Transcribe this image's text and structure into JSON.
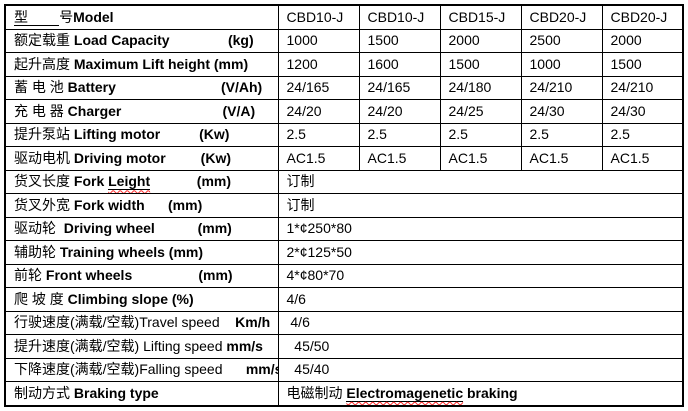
{
  "page": {
    "background": "#ffffff",
    "kind": "forklift-specification-table"
  },
  "colors": {
    "border": "#000000",
    "text": "#000000",
    "highlight_value": "#ff0000",
    "spellcheck_wavy": "#ff2a2a"
  },
  "table": {
    "value_column_count": 5,
    "rows": [
      {
        "name": "model",
        "label": [
          {
            "t": "型        ",
            "u": true
          },
          {
            "t": "号"
          },
          {
            "t": "Model",
            "b": true
          }
        ],
        "values": [
          "CBD10-J",
          "CBD10-J",
          "CBD15-J",
          "CBD20-J",
          "CBD20-J"
        ]
      },
      {
        "name": "load-capacity",
        "label": [
          {
            "t": "额定载重 "
          },
          {
            "t": "Load Capacity",
            "b": true
          },
          {
            "t": "               (kg)",
            "b": true
          }
        ],
        "values": [
          "1000",
          "1500",
          "2000",
          "2500",
          "2000"
        ]
      },
      {
        "name": "lift-height",
        "label": [
          {
            "t": "起升高度 "
          },
          {
            "t": "Maximum Lift height (mm)",
            "b": true
          }
        ],
        "values": [
          "1200",
          "1600",
          "1500",
          "1000",
          "1500"
        ]
      },
      {
        "name": "battery",
        "label": [
          {
            "t": "蓄 电 池 "
          },
          {
            "t": "Battery",
            "b": true
          },
          {
            "t": "                           (V/Ah)",
            "b": true
          }
        ],
        "values": [
          "24/165",
          "24/165",
          "24/180",
          "24/210",
          "24/210"
        ]
      },
      {
        "name": "charger",
        "label": [
          {
            "t": "充 电 器 "
          },
          {
            "t": "Charger",
            "b": true
          },
          {
            "t": "                          (V/A)",
            "b": true
          }
        ],
        "values": [
          "24/20",
          "24/20",
          "24/25",
          "24/30",
          "24/30"
        ]
      },
      {
        "name": "lifting-motor",
        "label": [
          {
            "t": "提升泵站 "
          },
          {
            "t": "Lifting motor",
            "b": true
          },
          {
            "t": "          (Kw)",
            "b": true
          }
        ],
        "values": [
          "2.5",
          "2.5",
          "2.5",
          "2.5",
          "2.5"
        ],
        "red": true
      },
      {
        "name": "driving-motor",
        "label": [
          {
            "t": "驱动电机 "
          },
          {
            "t": "Driving motor",
            "b": true
          },
          {
            "t": "         (Kw)",
            "b": true
          }
        ],
        "values": [
          "AC1.5",
          "AC1.5",
          "AC1.5",
          "AC1.5",
          "AC1.5"
        ]
      },
      {
        "name": "fork-length",
        "label": [
          {
            "t": "货叉长度 "
          },
          {
            "t": "Fork ",
            "b": true
          },
          {
            "t": "Leight",
            "b": true,
            "u": true,
            "w": true
          },
          {
            "t": "            (mm)",
            "b": true
          }
        ],
        "span": 5,
        "values": [
          "订制"
        ]
      },
      {
        "name": "fork-width",
        "label": [
          {
            "t": "货叉外宽 "
          },
          {
            "t": "Fork width",
            "b": true
          },
          {
            "t": "      (mm)",
            "b": true
          }
        ],
        "span": 5,
        "values": [
          "订制"
        ]
      },
      {
        "name": "driving-wheel",
        "label": [
          {
            "t": "驱动轮  "
          },
          {
            "t": "Driving wheel",
            "b": true
          },
          {
            "t": "           (mm)",
            "b": true
          }
        ],
        "span": 5,
        "values": [
          "1*¢250*80"
        ]
      },
      {
        "name": "training-wheels",
        "label": [
          {
            "t": "辅助轮 "
          },
          {
            "t": "Training wheels (mm)",
            "b": true
          }
        ],
        "span": 5,
        "values": [
          "2*¢125*50"
        ]
      },
      {
        "name": "front-wheels",
        "label": [
          {
            "t": "前轮 "
          },
          {
            "t": "Front wheels",
            "b": true
          },
          {
            "t": "                 (mm)",
            "b": true
          }
        ],
        "span": 5,
        "values": [
          "4*¢80*70"
        ]
      },
      {
        "name": "climbing-slope",
        "label": [
          {
            "t": "爬 坡 度 "
          },
          {
            "t": "Climbing slope (%)",
            "b": true
          }
        ],
        "span": 5,
        "values": [
          "4/6"
        ]
      },
      {
        "name": "travel-speed",
        "label": [
          {
            "t": "行驶速度(满载/空载)Travel speed"
          },
          {
            "t": "    Km/h",
            "b": true
          }
        ],
        "span": 5,
        "values": [
          " 4/6"
        ]
      },
      {
        "name": "lifting-speed",
        "label": [
          {
            "t": "提升速度(满载/空载) Lifting speed "
          },
          {
            "t": "mm/s",
            "b": true
          }
        ],
        "span": 5,
        "values": [
          "  45/50"
        ]
      },
      {
        "name": "falling-speed",
        "label": [
          {
            "t": "下降速度(满载/空载)Falling speed"
          },
          {
            "t": "      mm/s",
            "b": true
          }
        ],
        "span": 5,
        "values": [
          "  45/40"
        ]
      },
      {
        "name": "braking-type",
        "label": [
          {
            "t": "制动方式 "
          },
          {
            "t": "Braking type",
            "b": true
          }
        ],
        "span": 5,
        "values": [
          {
            "parts": [
              {
                "t": "电磁制动 "
              },
              {
                "t": "Electromagenetic",
                "b": true,
                "u": true,
                "w": true
              },
              {
                "t": " braking",
                "b": true
              }
            ]
          }
        ]
      }
    ]
  }
}
